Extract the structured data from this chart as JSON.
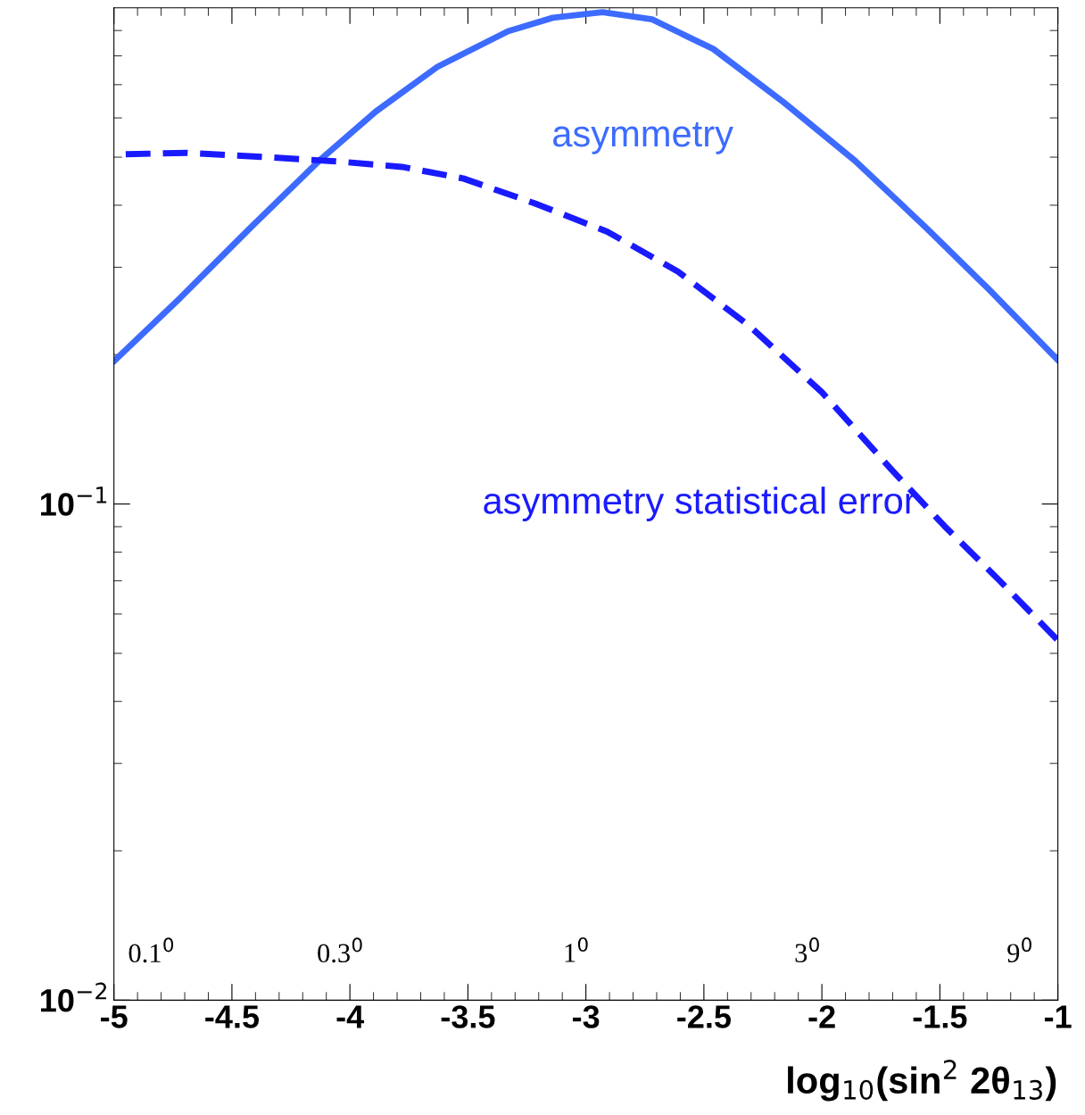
{
  "chart_data": {
    "type": "line",
    "xlabel": "log$_{10}$(sin$^{2}$ 2θ$_{13}$)",
    "log": "y",
    "xlim": [
      -5,
      -1
    ],
    "ylim": [
      0.01,
      1
    ],
    "xticks": [
      -5,
      {
        "value": -4.9,
        "label": null
      },
      {
        "value": -4.8,
        "label": null
      },
      {
        "value": -4.7,
        "label": null
      },
      {
        "value": -4.6,
        "label": null
      },
      -4.5,
      {
        "value": -4.4,
        "label": null
      },
      {
        "value": -4.3,
        "label": null
      },
      {
        "value": -4.2,
        "label": null
      },
      {
        "value": -4.1,
        "label": null
      },
      -4,
      {
        "value": -3.9,
        "label": null
      },
      {
        "value": -3.8,
        "label": null
      },
      {
        "value": -3.7,
        "label": null
      },
      {
        "value": -3.6,
        "label": null
      },
      -3.5,
      {
        "value": -3.4,
        "label": null
      },
      {
        "value": -3.3,
        "label": null
      },
      {
        "value": -3.2,
        "label": null
      },
      {
        "value": -3.1,
        "label": null
      },
      -3,
      {
        "value": -2.9,
        "label": null
      },
      {
        "value": -2.8,
        "label": null
      },
      {
        "value": -2.7,
        "label": null
      },
      {
        "value": -2.6,
        "label": null
      },
      -2.5,
      {
        "value": -2.4,
        "label": null
      },
      {
        "value": -2.3,
        "label": null
      },
      {
        "value": -2.2,
        "label": null
      },
      {
        "value": -2.1,
        "label": null
      },
      -2,
      {
        "value": -1.9,
        "label": null
      },
      {
        "value": -1.8,
        "label": null
      },
      {
        "value": -1.7,
        "label": null
      },
      {
        "value": -1.6,
        "label": null
      },
      -1.5,
      {
        "value": -1.4,
        "label": null
      },
      {
        "value": -1.3,
        "label": null
      },
      {
        "value": -1.2,
        "label": null
      },
      {
        "value": -1.1,
        "label": null
      },
      -1
    ],
    "yticks": [
      {
        "value": 0.01,
        "label": "10$^{−2}$"
      },
      {
        "value": 0.1,
        "label": "10$^{−1}$"
      }
    ],
    "grid": false,
    "legend": false,
    "series": [
      {
        "name": "asymmetry",
        "color": "#3d6bff",
        "line_style": "solid",
        "x": [
          -5,
          -4.72,
          -4.42,
          -4.12,
          -3.89,
          -3.63,
          -3.33,
          -3.14,
          -2.93,
          -2.72,
          -2.46,
          -2.16,
          -1.86,
          -1.56,
          -1.29,
          -1
        ],
        "values": [
          0.194,
          0.26,
          0.361,
          0.497,
          0.618,
          0.76,
          0.897,
          0.955,
          0.98,
          0.948,
          0.826,
          0.644,
          0.492,
          0.361,
          0.27,
          0.195
        ]
      },
      {
        "name": "asymmetry statistical error",
        "color": "#1a1aff",
        "line_style": "dashed",
        "x": [
          -4.95,
          -4.69,
          -4.35,
          -4.05,
          -3.78,
          -3.52,
          -3.22,
          -2.91,
          -2.61,
          -2.31,
          -2,
          -1.71,
          -1.48,
          -1.25,
          -1
        ],
        "values": [
          0.507,
          0.51,
          0.5,
          0.49,
          0.478,
          0.453,
          0.404,
          0.354,
          0.294,
          0.229,
          0.168,
          0.118,
          0.0902,
          0.0703,
          0.0531
        ]
      }
    ],
    "annotations": [
      "0.1$^{0}$",
      "0.3$^{0}$",
      "1$^{0}$",
      "3$^{0}$",
      "9$^{0}$"
    ]
  }
}
